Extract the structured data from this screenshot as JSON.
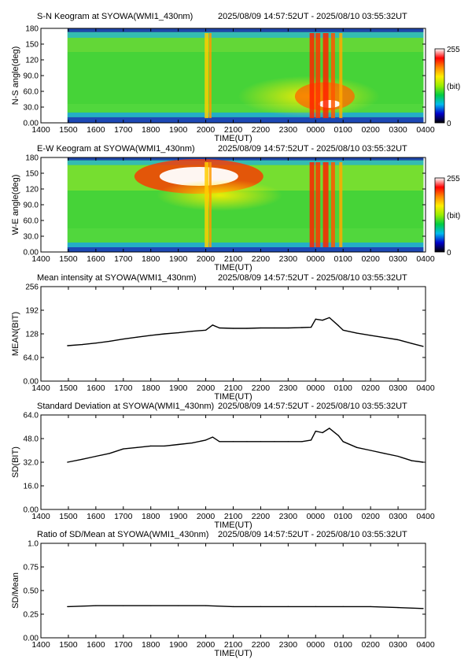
{
  "time_range": "2025/08/09 14:57:52UT - 2025/08/10 03:55:32UT",
  "x_axis": {
    "label": "TIME(UT)",
    "tick_labels": [
      "1400",
      "1500",
      "1600",
      "1700",
      "1800",
      "1900",
      "2000",
      "2100",
      "2200",
      "2300",
      "0000",
      "0100",
      "0200",
      "0300",
      "0400"
    ]
  },
  "colorbar": {
    "max_label": "255",
    "unit_label": "(bit)",
    "min_label": "0",
    "colors": [
      "#000000",
      "#0000cc",
      "#00bbee",
      "#00cc44",
      "#99ee00",
      "#ffee00",
      "#ff8800",
      "#ff0000",
      "#ffffff"
    ]
  },
  "chart_data": [
    {
      "type": "heatmap",
      "title": "S-N Keogram at SYOWA(WMI1_430nm)",
      "ylabel": "N-S angle(deg)",
      "yticks": [
        "0.00",
        "30.0",
        "60.0",
        "90.0",
        "120",
        "150",
        "180"
      ],
      "ylim": [
        0,
        180
      ],
      "xlim": [
        "1400",
        "0400"
      ],
      "data_start": "14:57:52",
      "data_end": "03:55:32",
      "features": [
        {
          "description": "bright red/white arc",
          "time": "00:00-01:00",
          "angle": [
            15,
            60
          ]
        },
        {
          "description": "vertical red bands",
          "time": "23:50-00:30"
        },
        {
          "description": "yellow brightening",
          "time": "20:00-20:15"
        }
      ]
    },
    {
      "type": "heatmap",
      "title": "E-W Keogram at SYOWA(WMI1_430nm)",
      "ylabel": "W-E angle(deg)",
      "yticks": [
        "0.00",
        "30.0",
        "60.0",
        "90.0",
        "120",
        "150",
        "180"
      ],
      "ylim": [
        0,
        180
      ],
      "xlim": [
        "1400",
        "0400"
      ],
      "features": [
        {
          "description": "bright white/red patch",
          "time": "18:00-21:00",
          "angle": [
            125,
            165
          ]
        },
        {
          "description": "vertical red bands",
          "time": "23:50-00:30"
        }
      ]
    },
    {
      "type": "line",
      "title": "Mean intensity at SYOWA(WMI1_430nm)",
      "ylabel": "MEAN(BIT)",
      "yticks": [
        "0.00",
        "64.0",
        "128",
        "192",
        "256"
      ],
      "ylim": [
        0,
        256
      ],
      "x": [
        "14:58",
        "15:30",
        "16:00",
        "16:30",
        "17:00",
        "17:30",
        "18:00",
        "18:30",
        "19:00",
        "19:30",
        "20:00",
        "20:15",
        "20:30",
        "21:00",
        "21:30",
        "22:00",
        "22:30",
        "23:00",
        "23:30",
        "23:50",
        "00:00",
        "00:15",
        "00:30",
        "00:50",
        "01:00",
        "01:30",
        "02:00",
        "02:30",
        "03:00",
        "03:30",
        "03:55"
      ],
      "values": [
        96,
        99,
        103,
        108,
        114,
        119,
        124,
        128,
        131,
        135,
        138,
        152,
        144,
        143,
        143,
        144,
        144,
        144,
        145,
        146,
        168,
        165,
        172,
        150,
        138,
        130,
        124,
        118,
        112,
        102,
        94
      ]
    },
    {
      "type": "line",
      "title": "Standard Deviation at SYOWA(WMI1_430nm)",
      "ylabel": "SD(BIT)",
      "yticks": [
        "0.00",
        "16.0",
        "32.0",
        "48.0",
        "64.0"
      ],
      "ylim": [
        0,
        64
      ],
      "x": [
        "14:58",
        "15:30",
        "16:00",
        "16:30",
        "17:00",
        "17:30",
        "18:00",
        "18:30",
        "19:00",
        "19:30",
        "20:00",
        "20:15",
        "20:30",
        "21:00",
        "21:30",
        "22:00",
        "22:30",
        "23:00",
        "23:30",
        "23:50",
        "00:00",
        "00:15",
        "00:30",
        "00:50",
        "01:00",
        "01:30",
        "02:00",
        "02:30",
        "03:00",
        "03:30",
        "03:55"
      ],
      "values": [
        32,
        34,
        36,
        38,
        41,
        42,
        43,
        43,
        44,
        45,
        47,
        49,
        46,
        46,
        46,
        46,
        46,
        46,
        46,
        47,
        53,
        52,
        55,
        50,
        46,
        42,
        40,
        38,
        36,
        33,
        32
      ]
    },
    {
      "type": "line",
      "title": "Ratio of SD/Mean at SYOWA(WMI1_430nm)",
      "ylabel": "SD/Mean",
      "yticks": [
        "0.00",
        "0.25",
        "0.50",
        "0.75",
        "1.0"
      ],
      "ylim": [
        0,
        1
      ],
      "x": [
        "14:58",
        "16:00",
        "17:00",
        "18:00",
        "19:00",
        "20:00",
        "21:00",
        "22:00",
        "23:00",
        "00:00",
        "01:00",
        "02:00",
        "03:00",
        "03:55"
      ],
      "values": [
        0.33,
        0.34,
        0.34,
        0.34,
        0.34,
        0.34,
        0.33,
        0.33,
        0.33,
        0.33,
        0.33,
        0.33,
        0.32,
        0.31
      ]
    }
  ]
}
